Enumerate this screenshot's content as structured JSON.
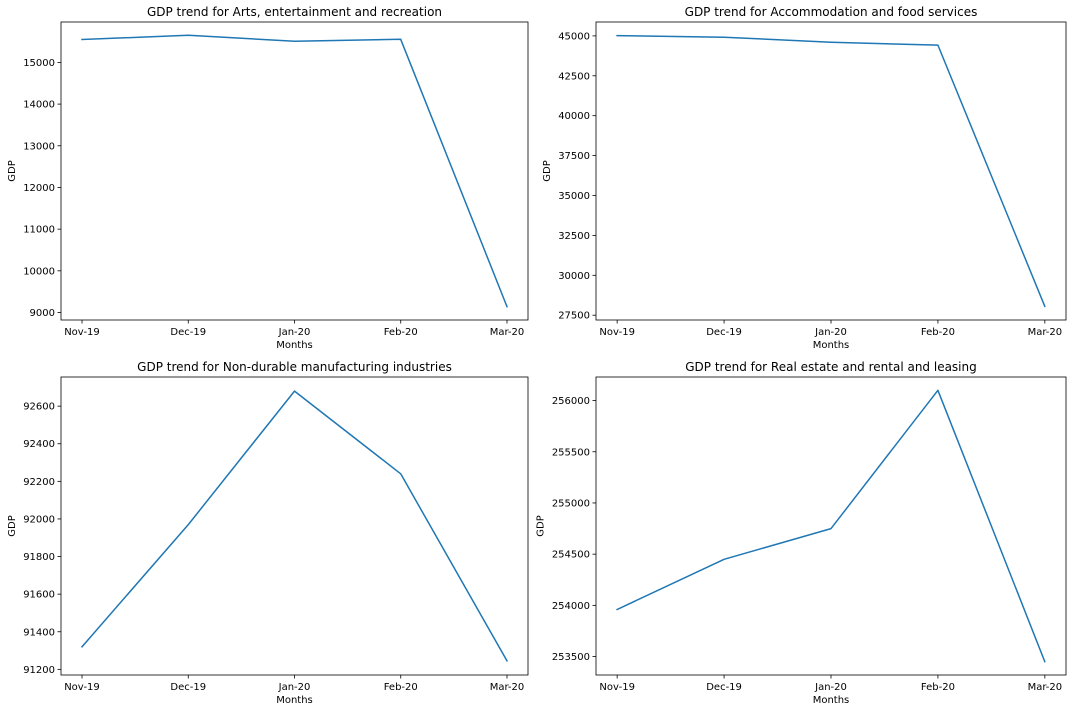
{
  "chart_data": [
    {
      "type": "line",
      "title": "GDP trend for Arts, entertainment and recreation",
      "xlabel": "Months",
      "ylabel": "GDP",
      "categories": [
        "Nov-19",
        "Dec-19",
        "Jan-20",
        "Feb-20",
        "Mar-20"
      ],
      "series": [
        {
          "values": [
            15550,
            15650,
            15510,
            15555,
            9140
          ],
          "color": "#1f77b4"
        }
      ],
      "yticks": [
        9000,
        10000,
        11000,
        12000,
        13000,
        14000,
        15000
      ],
      "ylim": [
        8820,
        15970
      ],
      "grid": false
    },
    {
      "type": "line",
      "title": "GDP trend for Accommodation and food services",
      "xlabel": "Months",
      "ylabel": "GDP",
      "categories": [
        "Nov-19",
        "Dec-19",
        "Jan-20",
        "Feb-20",
        "Mar-20"
      ],
      "series": [
        {
          "values": [
            45020,
            44920,
            44600,
            44420,
            28050
          ],
          "color": "#1f77b4"
        }
      ],
      "yticks": [
        27500,
        30000,
        32500,
        35000,
        37500,
        40000,
        42500,
        45000
      ],
      "ylim": [
        27200,
        45870
      ],
      "grid": false
    },
    {
      "type": "line",
      "title": "GDP trend for Non-durable manufacturing industries",
      "xlabel": "Months",
      "ylabel": "GDP",
      "categories": [
        "Nov-19",
        "Dec-19",
        "Jan-20",
        "Feb-20",
        "Mar-20"
      ],
      "series": [
        {
          "values": [
            91320,
            91970,
            92680,
            92240,
            91245
          ],
          "color": "#1f77b4"
        }
      ],
      "yticks": [
        91200,
        91400,
        91600,
        91800,
        92000,
        92200,
        92400,
        92600
      ],
      "ylim": [
        91170,
        92755
      ],
      "grid": false
    },
    {
      "type": "line",
      "title": "GDP trend for Real estate and rental and leasing",
      "xlabel": "Months",
      "ylabel": "GDP",
      "categories": [
        "Nov-19",
        "Dec-19",
        "Jan-20",
        "Feb-20",
        "Mar-20"
      ],
      "series": [
        {
          "values": [
            253960,
            254450,
            254750,
            256100,
            253450
          ],
          "color": "#1f77b4"
        }
      ],
      "yticks": [
        253500,
        254000,
        254500,
        255000,
        255500,
        256000
      ],
      "ylim": [
        253320,
        256230
      ],
      "grid": false
    }
  ]
}
